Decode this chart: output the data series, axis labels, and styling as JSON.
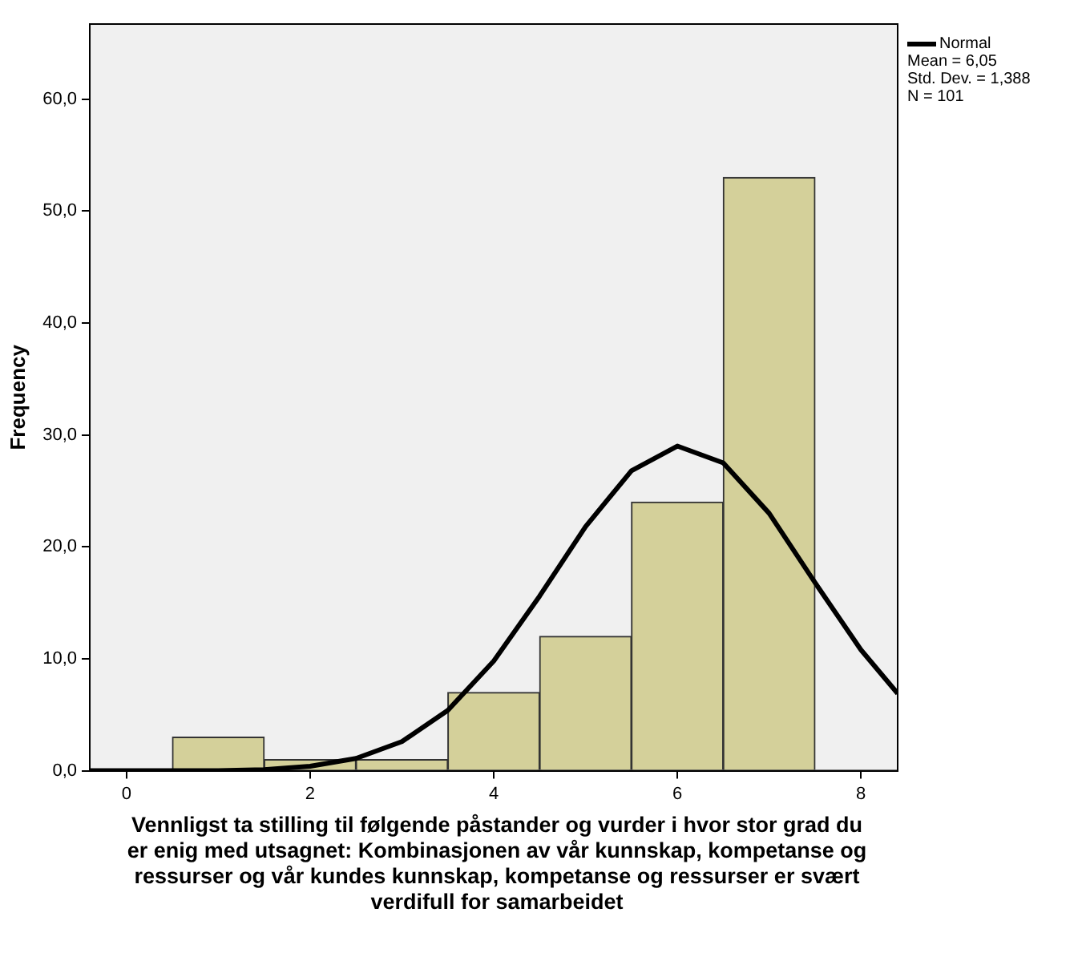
{
  "chart_data": {
    "type": "histogram",
    "xlabel": "Vennligst ta stilling til følgende påstander og vurder i hvor stor grad du er enig med utsagnet: Kombinasjonen av vår kunnskap, kompetanse og ressurser og vår kundes kunnskap, kompetanse og ressurser er svært verdifull for samarbeidet",
    "ylabel": "Frequency",
    "bins": [
      0.5,
      1.5,
      2.5,
      3.5,
      4.5,
      5.5,
      6.5,
      7.5
    ],
    "values": [
      3,
      1,
      1,
      7,
      12,
      24,
      53
    ],
    "color": "#d4d09a",
    "series": [
      {
        "type": "line",
        "name": "Normal",
        "color": "#000000",
        "x": [
          -0.4,
          0,
          0.5,
          1,
          1.5,
          2,
          2.5,
          3,
          3.5,
          4,
          4.5,
          5,
          5.5,
          6,
          6.5,
          7,
          7.5,
          8,
          8.4
        ],
        "values": [
          0,
          0,
          0,
          0,
          0.1,
          0.4,
          1.1,
          2.6,
          5.4,
          9.8,
          15.6,
          21.8,
          26.8,
          29.0,
          27.5,
          23.0,
          16.8,
          10.8,
          6.9
        ]
      }
    ],
    "annotations": [
      "Mean = 6,05",
      "Std. Dev. = 1,388",
      "N = 101"
    ],
    "xlim": [
      -0.4,
      8.4
    ],
    "xticks": [
      0,
      2,
      4,
      6,
      8
    ],
    "ylim": [
      0,
      66.7
    ],
    "yticks": [
      {
        "value": 0,
        "label": "0,0"
      },
      {
        "value": 10,
        "label": "10,0"
      },
      {
        "value": 20,
        "label": "20,0"
      },
      {
        "value": 30,
        "label": "30,0"
      },
      {
        "value": 40,
        "label": "40,0"
      },
      {
        "value": 50,
        "label": "50,0"
      },
      {
        "value": 60,
        "label": "60,0"
      }
    ],
    "grid": false,
    "legend": "top right",
    "marker": "none",
    "line_style": "solid"
  }
}
